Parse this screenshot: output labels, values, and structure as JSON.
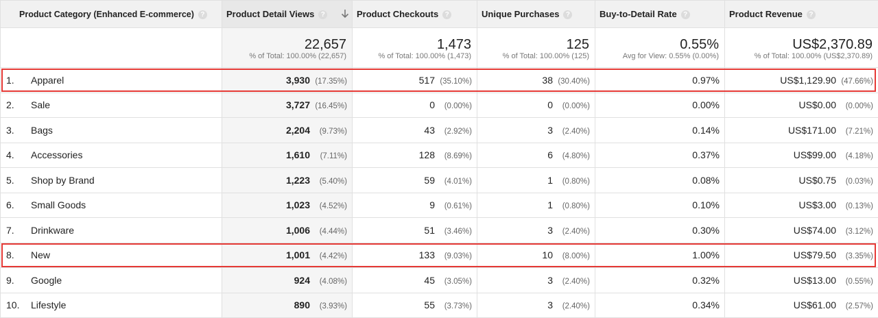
{
  "header": {
    "dimension": "Product Category (Enhanced E-commerce)",
    "metrics": [
      "Product Detail Views",
      "Product Checkouts",
      "Unique Purchases",
      "Buy-to-Detail Rate",
      "Product Revenue"
    ],
    "sorted_by": "Product Detail Views",
    "sort_direction": "descending"
  },
  "totals": [
    {
      "value": "22,657",
      "note": "% of Total: 100.00% (22,657)"
    },
    {
      "value": "1,473",
      "note": "% of Total: 100.00% (1,473)"
    },
    {
      "value": "125",
      "note": "% of Total: 100.00% (125)"
    },
    {
      "value": "0.55%",
      "note": "Avg for View: 0.55% (0.00%)"
    },
    {
      "value": "US$2,370.89",
      "note": "% of Total: 100.00% (US$2,370.89)"
    }
  ],
  "rows": [
    {
      "index": "1.",
      "category": "Apparel",
      "views": "3,930",
      "views_pct": "(17.35%)",
      "checkouts": "517",
      "checkouts_pct": "(35.10%)",
      "purchases": "38",
      "purchases_pct": "(30.40%)",
      "rate": "0.97%",
      "revenue": "US$1,129.90",
      "revenue_pct": "(47.66%)"
    },
    {
      "index": "2.",
      "category": "Sale",
      "views": "3,727",
      "views_pct": "(16.45%)",
      "checkouts": "0",
      "checkouts_pct": "(0.00%)",
      "purchases": "0",
      "purchases_pct": "(0.00%)",
      "rate": "0.00%",
      "revenue": "US$0.00",
      "revenue_pct": "(0.00%)"
    },
    {
      "index": "3.",
      "category": "Bags",
      "views": "2,204",
      "views_pct": "(9.73%)",
      "checkouts": "43",
      "checkouts_pct": "(2.92%)",
      "purchases": "3",
      "purchases_pct": "(2.40%)",
      "rate": "0.14%",
      "revenue": "US$171.00",
      "revenue_pct": "(7.21%)"
    },
    {
      "index": "4.",
      "category": "Accessories",
      "views": "1,610",
      "views_pct": "(7.11%)",
      "checkouts": "128",
      "checkouts_pct": "(8.69%)",
      "purchases": "6",
      "purchases_pct": "(4.80%)",
      "rate": "0.37%",
      "revenue": "US$99.00",
      "revenue_pct": "(4.18%)"
    },
    {
      "index": "5.",
      "category": "Shop by Brand",
      "views": "1,223",
      "views_pct": "(5.40%)",
      "checkouts": "59",
      "checkouts_pct": "(4.01%)",
      "purchases": "1",
      "purchases_pct": "(0.80%)",
      "rate": "0.08%",
      "revenue": "US$0.75",
      "revenue_pct": "(0.03%)"
    },
    {
      "index": "6.",
      "category": "Small Goods",
      "views": "1,023",
      "views_pct": "(4.52%)",
      "checkouts": "9",
      "checkouts_pct": "(0.61%)",
      "purchases": "1",
      "purchases_pct": "(0.80%)",
      "rate": "0.10%",
      "revenue": "US$3.00",
      "revenue_pct": "(0.13%)"
    },
    {
      "index": "7.",
      "category": "Drinkware",
      "views": "1,006",
      "views_pct": "(4.44%)",
      "checkouts": "51",
      "checkouts_pct": "(3.46%)",
      "purchases": "3",
      "purchases_pct": "(2.40%)",
      "rate": "0.30%",
      "revenue": "US$74.00",
      "revenue_pct": "(3.12%)"
    },
    {
      "index": "8.",
      "category": "New",
      "views": "1,001",
      "views_pct": "(4.42%)",
      "checkouts": "133",
      "checkouts_pct": "(9.03%)",
      "purchases": "10",
      "purchases_pct": "(8.00%)",
      "rate": "1.00%",
      "revenue": "US$79.50",
      "revenue_pct": "(3.35%)"
    },
    {
      "index": "9.",
      "category": "Google",
      "views": "924",
      "views_pct": "(4.08%)",
      "checkouts": "45",
      "checkouts_pct": "(3.05%)",
      "purchases": "3",
      "purchases_pct": "(2.40%)",
      "rate": "0.32%",
      "revenue": "US$13.00",
      "revenue_pct": "(0.55%)"
    },
    {
      "index": "10.",
      "category": "Lifestyle",
      "views": "890",
      "views_pct": "(3.93%)",
      "checkouts": "55",
      "checkouts_pct": "(3.73%)",
      "purchases": "3",
      "purchases_pct": "(2.40%)",
      "rate": "0.34%",
      "revenue": "US$61.00",
      "revenue_pct": "(2.57%)"
    }
  ],
  "highlighted_rows": [
    "Apparel",
    "New"
  ],
  "colors": {
    "highlight": "#e53935",
    "header_bg": "#f1f1f1",
    "sorted_bg": "#f5f5f5"
  },
  "icons": {
    "help": "question-mark-icon",
    "sort": "arrow-down-icon"
  }
}
